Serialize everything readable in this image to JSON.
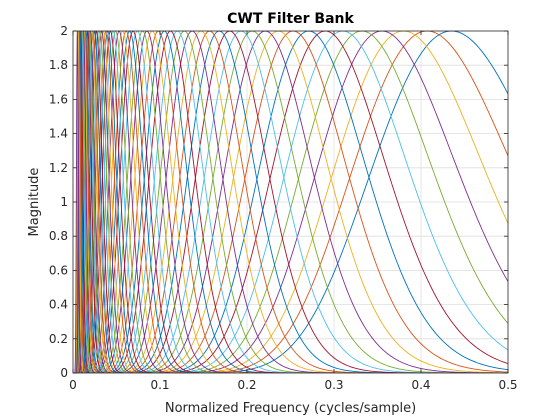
{
  "chart_data": {
    "type": "line",
    "title": "CWT Filter Bank",
    "xlabel": "Normalized Frequency  (cycles/sample)",
    "ylabel": "Magnitude",
    "xlim": [
      0,
      0.5
    ],
    "ylim": [
      0,
      2
    ],
    "xticks": [
      0,
      0.1,
      0.2,
      0.3,
      0.4,
      0.5
    ],
    "xtick_labels": [
      "0",
      "0.1",
      "0.2",
      "0.3",
      "0.4",
      "0.5"
    ],
    "yticks": [
      0,
      0.2,
      0.4,
      0.6,
      0.8,
      1,
      1.2,
      1.4,
      1.6,
      1.8,
      2
    ],
    "ytick_labels": [
      "0",
      "0.2",
      "0.4",
      "0.6",
      "0.8",
      "1",
      "1.2",
      "1.4",
      "1.6",
      "1.8",
      "2"
    ],
    "grid": true,
    "peak_magnitude": 2,
    "filter_shape": "Morse wavelet bandpass filters, peaks spaced geometrically",
    "center_frequencies": [
      0.435,
      0.407,
      0.38,
      0.355,
      0.332,
      0.31,
      0.29,
      0.271,
      0.253,
      0.236,
      0.221,
      0.206,
      0.193,
      0.18,
      0.168,
      0.157,
      0.147,
      0.137,
      0.128,
      0.12,
      0.112,
      0.105,
      0.098,
      0.091,
      0.085,
      0.08,
      0.074,
      0.069,
      0.065,
      0.061,
      0.057,
      0.053,
      0.049,
      0.046,
      0.043,
      0.04,
      0.038,
      0.035,
      0.033,
      0.031,
      0.029,
      0.027,
      0.025,
      0.023,
      0.022,
      0.02,
      0.019,
      0.018,
      0.017,
      0.015,
      0.014,
      0.013,
      0.012,
      0.011,
      0.01,
      0.009,
      0.008,
      0.007,
      0.006,
      0.005
    ],
    "series_colors": [
      "#0072bd",
      "#d95319",
      "#edb120",
      "#7e2f8e",
      "#77ac30",
      "#4dbeee",
      "#a2142f"
    ]
  }
}
